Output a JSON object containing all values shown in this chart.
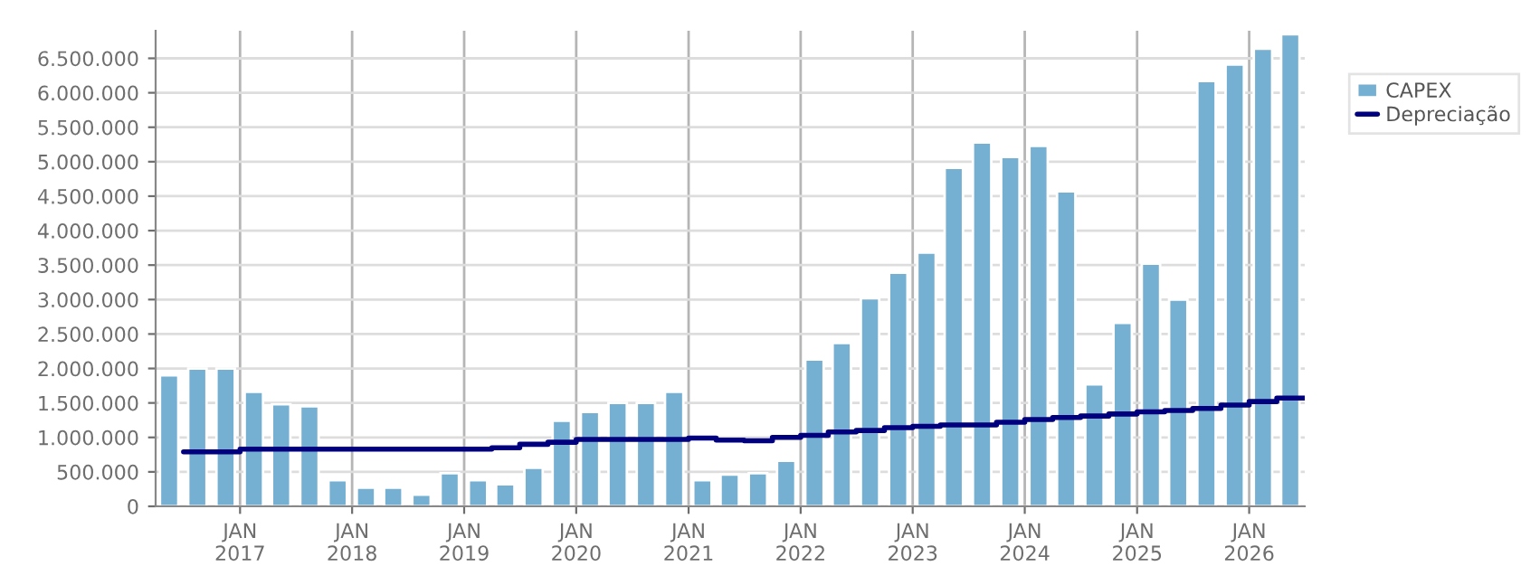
{
  "chart_data": {
    "type": "bar",
    "x": [
      "2016-05-15",
      "2016-08-15",
      "2016-11-15",
      "2017-02-15",
      "2017-05-15",
      "2017-08-15",
      "2017-11-15",
      "2018-02-15",
      "2018-05-15",
      "2018-08-15",
      "2018-11-15",
      "2019-02-15",
      "2019-05-15",
      "2019-08-15",
      "2019-11-15",
      "2020-02-15",
      "2020-05-15",
      "2020-08-15",
      "2020-11-15",
      "2021-02-15",
      "2021-05-15",
      "2021-08-15",
      "2021-11-15",
      "2022-02-15",
      "2022-05-15",
      "2022-08-15",
      "2022-11-15",
      "2023-02-15",
      "2023-05-15",
      "2023-08-15",
      "2023-11-15",
      "2024-02-15",
      "2024-05-15",
      "2024-08-15",
      "2024-11-15",
      "2025-02-15",
      "2025-05-15",
      "2025-08-15",
      "2025-11-15",
      "2026-02-15",
      "2026-05-15"
    ],
    "series": [
      {
        "name": "CAPEX",
        "color": "#75afd2",
        "values": [
          1900000,
          2000000,
          2000000,
          1660000,
          1480000,
          1450000,
          380000,
          270000,
          270000,
          170000,
          480000,
          380000,
          320000,
          560000,
          1240000,
          1370000,
          1500000,
          1500000,
          1660000,
          380000,
          460000,
          480000,
          660000,
          2130000,
          2370000,
          3020000,
          3390000,
          3680000,
          4910000,
          5280000,
          5070000,
          5230000,
          4570000,
          1770000,
          2660000,
          3520000,
          3000000,
          6170000,
          6410000,
          6640000,
          6850000
        ]
      },
      {
        "name": "Depreciação",
        "type": "step",
        "color": "#00007f",
        "x": [
          "2016-07-01",
          "2016-10-01",
          "2017-01-01",
          "2017-04-01",
          "2017-07-01",
          "2017-10-01",
          "2018-01-01",
          "2018-04-01",
          "2018-07-01",
          "2018-10-01",
          "2019-01-01",
          "2019-04-01",
          "2019-07-01",
          "2019-10-01",
          "2020-01-01",
          "2020-04-01",
          "2020-07-01",
          "2020-10-01",
          "2021-01-01",
          "2021-04-01",
          "2021-07-01",
          "2021-10-01",
          "2022-01-01",
          "2022-04-01",
          "2022-07-01",
          "2022-10-01",
          "2023-01-01",
          "2023-04-01",
          "2023-07-01",
          "2023-10-01",
          "2024-01-01",
          "2024-04-01",
          "2024-07-01",
          "2024-10-01",
          "2025-01-01",
          "2025-04-01",
          "2025-07-01",
          "2025-10-01",
          "2026-01-01",
          "2026-04-01",
          "2026-07-01"
        ],
        "values": [
          790000,
          790000,
          830000,
          830000,
          830000,
          830000,
          830000,
          830000,
          830000,
          830000,
          830000,
          850000,
          900000,
          930000,
          970000,
          970000,
          970000,
          970000,
          990000,
          960000,
          950000,
          1000000,
          1030000,
          1080000,
          1100000,
          1140000,
          1160000,
          1180000,
          1180000,
          1220000,
          1260000,
          1290000,
          1310000,
          1340000,
          1370000,
          1390000,
          1420000,
          1470000,
          1520000,
          1570000,
          1570000
        ]
      }
    ],
    "xlim": [
      "2016-04-01",
      "2026-07-01"
    ],
    "xticks": [
      {
        "value": "2017-01-01",
        "label": "JAN\n2017"
      },
      {
        "value": "2018-01-01",
        "label": "JAN\n2018"
      },
      {
        "value": "2019-01-01",
        "label": "JAN\n2019"
      },
      {
        "value": "2020-01-01",
        "label": "JAN\n2020"
      },
      {
        "value": "2021-01-01",
        "label": "JAN\n2021"
      },
      {
        "value": "2022-01-01",
        "label": "JAN\n2022"
      },
      {
        "value": "2023-01-01",
        "label": "JAN\n2023"
      },
      {
        "value": "2024-01-01",
        "label": "JAN\n2024"
      },
      {
        "value": "2025-01-01",
        "label": "JAN\n2025"
      },
      {
        "value": "2026-01-01",
        "label": "JAN\n2026"
      }
    ],
    "ylim": [
      0,
      6900000
    ],
    "yticks": [
      {
        "value": 0,
        "label": "0"
      },
      {
        "value": 500000,
        "label": "500.000"
      },
      {
        "value": 1000000,
        "label": "1.000.000"
      },
      {
        "value": 1500000,
        "label": "1.500.000"
      },
      {
        "value": 2000000,
        "label": "2.000.000"
      },
      {
        "value": 2500000,
        "label": "2.500.000"
      },
      {
        "value": 3000000,
        "label": "3.000.000"
      },
      {
        "value": 3500000,
        "label": "3.500.000"
      },
      {
        "value": 4000000,
        "label": "4.000.000"
      },
      {
        "value": 4500000,
        "label": "4.500.000"
      },
      {
        "value": 5000000,
        "label": "5.000.000"
      },
      {
        "value": 5500000,
        "label": "5.500.000"
      },
      {
        "value": 6000000,
        "label": "6.000.000"
      },
      {
        "value": 6500000,
        "label": "6.500.000"
      }
    ],
    "grid": true,
    "legend": "top right"
  }
}
